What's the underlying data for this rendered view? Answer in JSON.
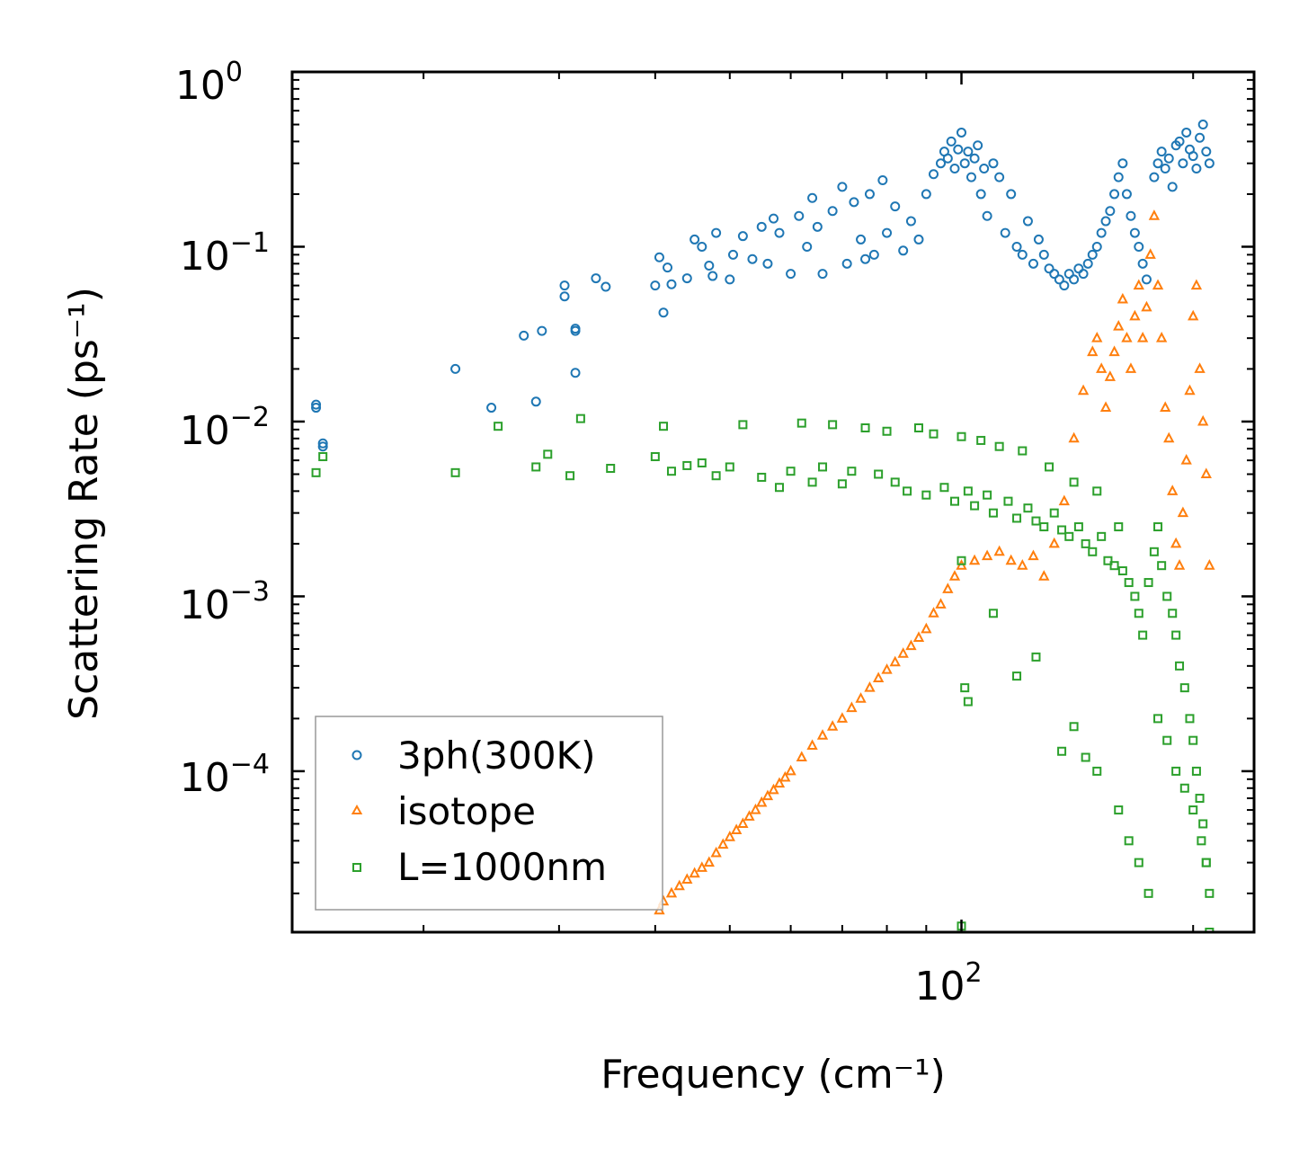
{
  "chart_data": {
    "type": "scatter",
    "xscale": "log",
    "yscale": "log",
    "xlim": [
      13.5,
      240
    ],
    "ylim": [
      1.2e-05,
      1.0
    ],
    "xlabel": "Frequency (cm⁻¹)",
    "ylabel": "Scattering Rate (ps⁻¹)",
    "xticks": [
      {
        "base": "10",
        "exp": "2"
      }
    ],
    "yticks": [
      {
        "base": "10",
        "exp": "0"
      },
      {
        "base": "10",
        "exp": "−1"
      },
      {
        "base": "10",
        "exp": "−2"
      },
      {
        "base": "10",
        "exp": "−3"
      },
      {
        "base": "10",
        "exp": "−4"
      }
    ],
    "legend_position": "lower-left",
    "series": [
      {
        "name": "3ph(300K)",
        "marker": "circle",
        "color": "#1f77b4",
        "x": [
          14.5,
          14.5,
          14.8,
          14.8,
          22,
          24.5,
          27,
          28,
          28.5,
          30.5,
          30.5,
          31.5,
          31.5,
          31.5,
          33.5,
          34.5,
          40,
          40.5,
          41,
          41.5,
          42,
          44,
          45,
          46,
          47,
          47.5,
          48,
          50,
          50.5,
          52,
          53.5,
          55,
          56,
          57,
          58,
          60,
          61.5,
          63,
          64,
          65,
          66,
          68,
          70,
          71,
          72.5,
          74,
          75,
          76,
          77,
          79,
          80,
          82,
          84,
          86,
          88,
          90,
          92,
          94,
          95,
          96,
          97,
          98,
          99,
          100,
          101,
          102,
          103,
          104,
          105,
          106,
          107,
          108,
          110,
          112,
          114,
          116,
          118,
          120,
          122,
          124,
          126,
          128,
          130,
          132,
          134,
          136,
          138,
          140,
          142,
          144,
          146,
          148,
          150,
          152,
          154,
          156,
          158,
          160,
          162,
          164,
          166,
          168,
          170,
          172,
          174,
          178,
          180,
          182,
          184,
          186,
          188,
          190,
          192,
          194,
          196,
          198,
          200,
          202,
          204,
          206,
          208,
          210
        ],
        "y": [
          0.0125,
          0.012,
          0.0075,
          0.0072,
          0.02,
          0.012,
          0.031,
          0.013,
          0.033,
          0.06,
          0.052,
          0.034,
          0.033,
          0.019,
          0.066,
          0.059,
          0.06,
          0.087,
          0.042,
          0.076,
          0.061,
          0.066,
          0.11,
          0.1,
          0.078,
          0.068,
          0.12,
          0.065,
          0.09,
          0.115,
          0.085,
          0.13,
          0.08,
          0.145,
          0.12,
          0.07,
          0.15,
          0.1,
          0.19,
          0.13,
          0.07,
          0.16,
          0.22,
          0.08,
          0.18,
          0.11,
          0.085,
          0.2,
          0.09,
          0.24,
          0.12,
          0.17,
          0.095,
          0.14,
          0.11,
          0.2,
          0.26,
          0.3,
          0.35,
          0.32,
          0.4,
          0.28,
          0.36,
          0.45,
          0.3,
          0.35,
          0.25,
          0.32,
          0.38,
          0.2,
          0.28,
          0.15,
          0.3,
          0.25,
          0.12,
          0.2,
          0.1,
          0.09,
          0.14,
          0.08,
          0.11,
          0.09,
          0.075,
          0.07,
          0.065,
          0.06,
          0.07,
          0.065,
          0.075,
          0.07,
          0.08,
          0.09,
          0.1,
          0.12,
          0.14,
          0.16,
          0.2,
          0.25,
          0.3,
          0.2,
          0.15,
          0.12,
          0.1,
          0.08,
          0.065,
          0.25,
          0.3,
          0.35,
          0.28,
          0.32,
          0.22,
          0.38,
          0.4,
          0.3,
          0.45,
          0.36,
          0.33,
          0.28,
          0.42,
          0.5,
          0.35,
          0.3
        ]
      },
      {
        "name": "isotope",
        "marker": "triangle",
        "color": "#ff7f0e",
        "x": [
          40.5,
          41,
          42,
          43,
          44,
          45,
          46,
          47,
          48,
          49,
          50,
          51,
          52,
          53,
          54,
          55,
          56,
          57,
          58,
          59,
          60,
          62,
          64,
          66,
          68,
          70,
          72,
          74,
          76,
          78,
          80,
          82,
          84,
          86,
          88,
          90,
          92,
          94,
          96,
          98,
          100,
          104,
          108,
          112,
          116,
          120,
          124,
          128,
          132,
          136,
          140,
          144,
          148,
          150,
          152,
          154,
          156,
          158,
          160,
          162,
          164,
          166,
          168,
          170,
          172,
          174,
          176,
          178,
          180,
          182,
          184,
          186,
          188,
          190,
          192,
          194,
          196,
          198,
          200,
          202,
          204,
          206,
          208,
          210
        ],
        "y": [
          1.6e-05,
          1.8e-05,
          2e-05,
          2.2e-05,
          2.4e-05,
          2.6e-05,
          2.8e-05,
          3e-05,
          3.4e-05,
          3.8e-05,
          4.2e-05,
          4.6e-05,
          5e-05,
          5.5e-05,
          6e-05,
          6.6e-05,
          7.2e-05,
          7.8e-05,
          8.5e-05,
          9.2e-05,
          0.0001,
          0.00012,
          0.00014,
          0.00016,
          0.00018,
          0.0002,
          0.00023,
          0.00026,
          0.0003,
          0.00034,
          0.00038,
          0.00042,
          0.00047,
          0.00052,
          0.00058,
          0.00065,
          0.0008,
          0.0009,
          0.0011,
          0.0013,
          0.0015,
          0.0016,
          0.0017,
          0.0018,
          0.0016,
          0.0015,
          0.0017,
          0.0013,
          0.002,
          0.0035,
          0.008,
          0.015,
          0.025,
          0.03,
          0.02,
          0.012,
          0.018,
          0.025,
          0.035,
          0.05,
          0.03,
          0.02,
          0.04,
          0.06,
          0.03,
          0.045,
          0.09,
          0.15,
          0.06,
          0.03,
          0.012,
          0.008,
          0.004,
          0.002,
          0.0015,
          0.003,
          0.006,
          0.015,
          0.04,
          0.06,
          0.02,
          0.01,
          0.005,
          0.0015
        ]
      },
      {
        "name": "L=1000nm",
        "marker": "square",
        "color": "#2ca02c",
        "x": [
          14.5,
          14.8,
          22,
          25,
          28,
          29,
          31,
          32,
          35,
          40,
          41,
          42,
          44,
          46,
          48,
          50,
          52,
          55,
          58,
          60,
          62,
          64,
          66,
          68,
          70,
          72,
          75,
          78,
          80,
          82,
          85,
          88,
          90,
          92,
          95,
          98,
          100,
          102,
          104,
          106,
          108,
          110,
          112,
          115,
          118,
          120,
          122,
          125,
          128,
          130,
          132,
          135,
          138,
          140,
          142,
          145,
          148,
          150,
          152,
          155,
          158,
          160,
          162,
          165,
          168,
          170,
          172,
          175,
          178,
          180,
          182,
          185,
          188,
          190,
          192,
          195,
          198,
          200,
          202,
          204,
          206,
          208,
          210,
          100,
          101,
          102,
          110,
          118,
          125,
          135,
          140,
          145,
          150,
          160,
          165,
          170,
          175,
          180,
          185,
          190,
          195,
          200,
          205,
          208,
          210,
          100
        ],
        "y": [
          0.0051,
          0.0063,
          0.0051,
          0.0094,
          0.0055,
          0.0065,
          0.0049,
          0.0104,
          0.0054,
          0.0063,
          0.0094,
          0.0052,
          0.0056,
          0.0058,
          0.0049,
          0.0055,
          0.0096,
          0.0048,
          0.0042,
          0.0052,
          0.0098,
          0.0045,
          0.0055,
          0.0096,
          0.0044,
          0.0052,
          0.0092,
          0.005,
          0.0088,
          0.0045,
          0.004,
          0.0092,
          0.0038,
          0.0085,
          0.0042,
          0.0035,
          0.0082,
          0.004,
          0.0033,
          0.0078,
          0.0038,
          0.003,
          0.0072,
          0.0035,
          0.0028,
          0.0068,
          0.0032,
          0.0027,
          0.0025,
          0.0055,
          0.003,
          0.0024,
          0.0022,
          0.0045,
          0.0025,
          0.002,
          0.0018,
          0.004,
          0.0022,
          0.0016,
          0.0015,
          0.0025,
          0.0014,
          0.0012,
          0.001,
          0.0008,
          0.0006,
          0.0012,
          0.0018,
          0.0025,
          0.0015,
          0.001,
          0.0008,
          0.0006,
          0.0004,
          0.0003,
          0.0002,
          0.00015,
          0.0001,
          7e-05,
          5e-05,
          3e-05,
          2e-05,
          0.0016,
          0.0003,
          0.00025,
          0.0008,
          0.00035,
          0.00045,
          0.00013,
          0.00018,
          0.00012,
          0.0001,
          6e-05,
          4e-05,
          3e-05,
          2e-05,
          0.0002,
          0.00015,
          0.0001,
          8e-05,
          6e-05,
          4e-05,
          3e-05,
          1.2e-05,
          1.3e-05
        ]
      }
    ]
  }
}
